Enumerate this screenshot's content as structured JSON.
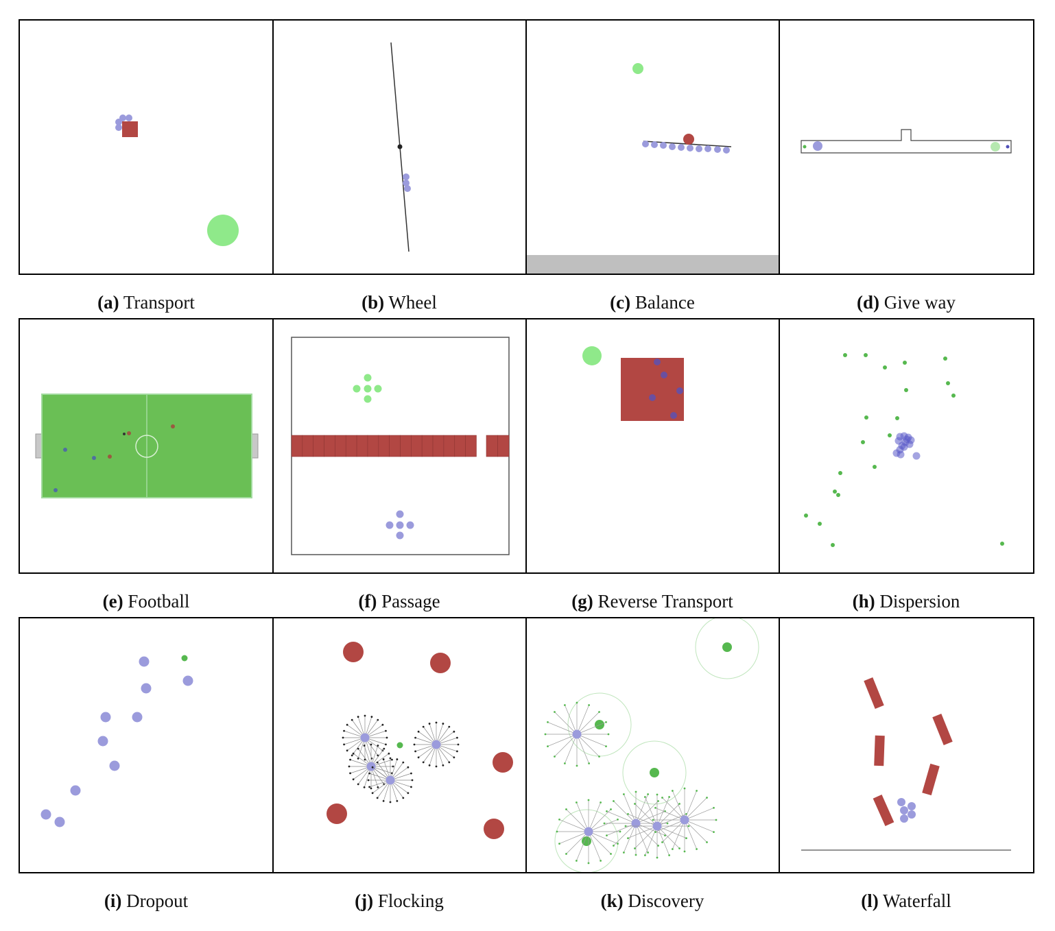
{
  "colors": {
    "agent": "#9b9bdc",
    "agent_dark": "#4f4fb8",
    "goal": "#8fe98a",
    "goal_dark": "#56b84f",
    "package": "#b24743",
    "field": "#6abf55",
    "field_line": "#a3dba0",
    "floor": "#bfbfbf",
    "line": "#333333",
    "frame": "#000000"
  },
  "panels": [
    {
      "letter": "(a)",
      "name": "Transport"
    },
    {
      "letter": "(b)",
      "name": "Wheel"
    },
    {
      "letter": "(c)",
      "name": "Balance"
    },
    {
      "letter": "(d)",
      "name": "Give way"
    },
    {
      "letter": "(e)",
      "name": "Football"
    },
    {
      "letter": "(f)",
      "name": "Passage"
    },
    {
      "letter": "(g)",
      "name": "Reverse Transport"
    },
    {
      "letter": "(h)",
      "name": "Dispersion"
    },
    {
      "letter": "(i)",
      "name": "Dropout"
    },
    {
      "letter": "(j)",
      "name": "Flocking"
    },
    {
      "letter": "(k)",
      "name": "Discovery"
    },
    {
      "letter": "(l)",
      "name": "Waterfall"
    }
  ]
}
